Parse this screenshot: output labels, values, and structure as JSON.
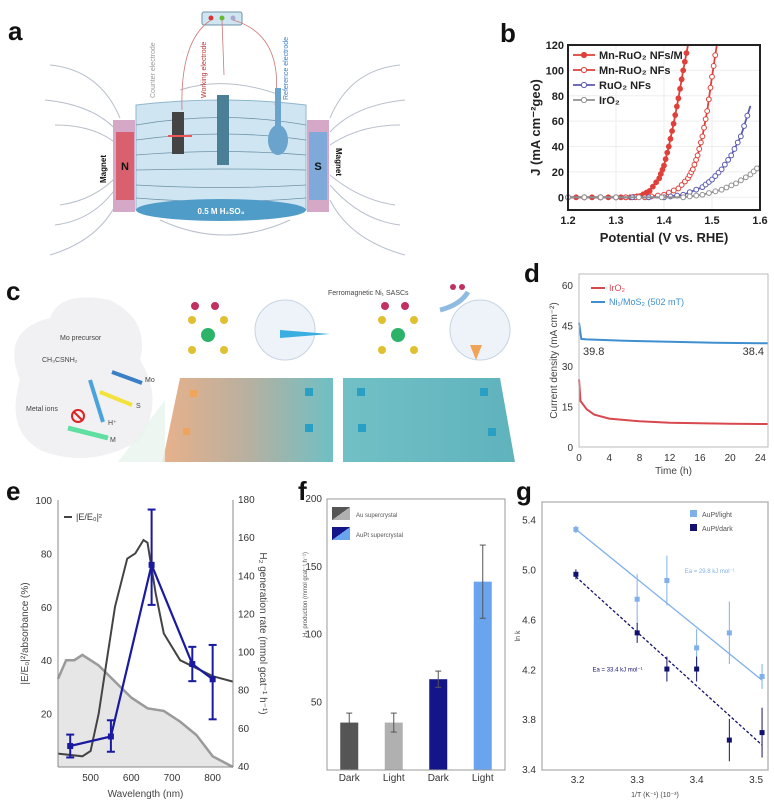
{
  "panels": {
    "a": "a",
    "b": "b",
    "c": "c",
    "d": "d",
    "e": "e",
    "f": "f",
    "g": "g"
  },
  "diagram_a": {
    "magnet_left_pole": "N",
    "magnet_right_pole": "S",
    "magnet_label": "Magnet",
    "counter_electrode": "Counter electrode",
    "working_electrode": "Working electrode",
    "reference_electrode": "Reference electrode",
    "electrolyte": "0.5 M H₂SO₄",
    "colors": {
      "north": "#d9606e",
      "south": "#7ea9d8",
      "cell": "#cfe6f2",
      "electrolyte": "#4f9cc8"
    }
  },
  "diagram_c": {
    "mo_precursor": "Mo precursor",
    "thioacetamide": "CH₃CSNH₂",
    "metal_ions": "Metal ions",
    "mo": "Mo",
    "s": "S",
    "h_plus": "H⁺",
    "m": "M",
    "ferromagnetic_label": "Ferromagnetic Ni₁ SASCs",
    "colors": {
      "orange": "#f0a45a",
      "teal": "#4fb3bf",
      "mo_arrow": "#3a7fc4",
      "s_arrow": "#f2e23a",
      "m_arrow": "#5fe0a0"
    }
  },
  "chart_data": [
    {
      "id": "b",
      "type": "line",
      "xlabel": "Potential (V vs. RHE)",
      "ylabel": "J (mA cm⁻²geo)",
      "xlim": [
        1.2,
        1.6
      ],
      "ylim": [
        -10,
        120
      ],
      "xticks": [
        "1.2",
        "1.3",
        "1.4",
        "1.5",
        "1.6"
      ],
      "yticks": [
        "0",
        "20",
        "40",
        "60",
        "80",
        "100",
        "120"
      ],
      "grid": true,
      "legend": "top-left",
      "series": [
        {
          "name": "Mn-RuO₂ NFs/M",
          "color": "#e0403a",
          "marker": "filled-circle",
          "x": [
            1.2,
            1.25,
            1.3,
            1.33,
            1.35,
            1.37,
            1.39,
            1.4,
            1.41,
            1.42,
            1.43,
            1.44,
            1.45
          ],
          "y": [
            0,
            0,
            0,
            0,
            1,
            5,
            15,
            25,
            40,
            58,
            78,
            100,
            120
          ]
        },
        {
          "name": "Mn-RuO₂ NFs",
          "color": "#e0403a",
          "marker": "open-circle",
          "x": [
            1.2,
            1.3,
            1.36,
            1.4,
            1.43,
            1.45,
            1.46,
            1.47,
            1.48,
            1.49,
            1.5,
            1.51
          ],
          "y": [
            0,
            0,
            0,
            2,
            7,
            15,
            22,
            33,
            48,
            68,
            95,
            120
          ]
        },
        {
          "name": "RuO₂ NFs",
          "color": "#5a5ab0",
          "marker": "open-circle",
          "x": [
            1.2,
            1.3,
            1.4,
            1.44,
            1.48,
            1.5,
            1.52,
            1.54,
            1.56,
            1.58
          ],
          "y": [
            0,
            0,
            0,
            2,
            8,
            14,
            22,
            33,
            48,
            72
          ]
        },
        {
          "name": "IrO₂",
          "color": "#909090",
          "marker": "open-circle",
          "x": [
            1.2,
            1.3,
            1.44,
            1.48,
            1.52,
            1.55,
            1.58,
            1.6
          ],
          "y": [
            0,
            0,
            0,
            2,
            6,
            11,
            18,
            25
          ]
        }
      ]
    },
    {
      "id": "d",
      "type": "line",
      "xlabel": "Time (h)",
      "ylabel": "Current density (mA cm⁻²)",
      "xlim": [
        0,
        25
      ],
      "ylim": [
        0,
        64
      ],
      "xticks": [
        "0",
        "4",
        "8",
        "12",
        "16",
        "20",
        "24"
      ],
      "yticks": [
        "0",
        "15",
        "30",
        "45",
        "60"
      ],
      "legend": "top-left",
      "annotations": [
        "39.8",
        "38.4"
      ],
      "series": [
        {
          "name": "IrO₂",
          "color": "#d9484f",
          "x": [
            0,
            0.2,
            1,
            2,
            4,
            8,
            12,
            16,
            20,
            24,
            25
          ],
          "y": [
            25,
            17,
            14,
            12,
            10.5,
            9.5,
            9,
            8.8,
            8.6,
            8.5,
            8.5
          ]
        },
        {
          "name": "Ni₁/MoS₂ (502 mT)",
          "color": "#3f8fd0",
          "x": [
            0,
            0.3,
            1,
            6,
            12,
            18,
            24,
            25
          ],
          "y": [
            46,
            40,
            39.8,
            39.3,
            38.9,
            38.6,
            38.4,
            38.4
          ]
        }
      ]
    },
    {
      "id": "e",
      "type": "line",
      "xlabel": "Wavelength (nm)",
      "ylabel": "|E/E₀|²/absorbance (%)",
      "ylabel_right": "H₂ generation rate (mmol gcat⁻¹ h⁻¹)",
      "xlim": [
        420,
        850
      ],
      "ylim": [
        0,
        100
      ],
      "ylim_right": [
        40,
        180
      ],
      "xticks": [
        "500",
        "600",
        "700",
        "800"
      ],
      "yticks": [
        "20",
        "40",
        "60",
        "80",
        "100"
      ],
      "yticks_right": [
        "40",
        "60",
        "80",
        "100",
        "120",
        "140",
        "160",
        "180"
      ],
      "legend": "top-left",
      "series": [
        {
          "name": "|E/E₀|²",
          "color": "#444444",
          "x": [
            420,
            480,
            500,
            520,
            540,
            560,
            590,
            610,
            630,
            640,
            660,
            680,
            720,
            760,
            800,
            850
          ],
          "y": [
            5,
            4,
            6,
            20,
            40,
            60,
            78,
            80,
            85,
            84,
            65,
            50,
            40,
            37,
            34,
            32
          ]
        },
        {
          "color": "#9a9a9a",
          "fill": "#e6e6e6",
          "x": [
            420,
            440,
            460,
            480,
            520,
            560,
            600,
            640,
            680,
            720,
            760,
            800,
            850
          ],
          "y": [
            33,
            40,
            40,
            42,
            38,
            32,
            26,
            22,
            21,
            17,
            12,
            4,
            0
          ]
        },
        {
          "color": "#1a1aa0",
          "axis": "right",
          "x": [
            450,
            550,
            650,
            750,
            800
          ],
          "y": [
            51,
            56,
            146,
            94,
            86
          ],
          "err_low": [
            45,
            48,
            125,
            85,
            65
          ],
          "err_high": [
            57,
            64.5,
            175,
            103,
            104
          ]
        }
      ]
    },
    {
      "id": "f",
      "type": "bar",
      "ylabel": "H₂ production (mmol gcat⁻¹ h⁻¹)",
      "ylim": [
        0,
        200
      ],
      "yticks": [
        "50",
        "100",
        "150",
        "200"
      ],
      "categories": [
        "Dark",
        "Light",
        "Dark",
        "Light"
      ],
      "values": [
        35,
        35,
        67,
        139
      ],
      "errors": [
        7,
        7,
        6,
        27
      ],
      "colors": [
        "#555555",
        "#b0b0b0",
        "#15158a",
        "#6aa4ee"
      ],
      "legend": "top-left",
      "legend_entries": [
        "Au supercrystal",
        "AuPt supercrystal"
      ]
    },
    {
      "id": "g",
      "type": "scatter",
      "xlabel": "1/T (K⁻¹) (10⁻³)",
      "ylabel": "ln k",
      "xlim": [
        3.14,
        3.52
      ],
      "ylim": [
        3.4,
        5.55
      ],
      "xticks": [
        "3.2",
        "3.3",
        "3.4",
        "3.5"
      ],
      "yticks": [
        "3.4",
        "3.8",
        "4.2",
        "4.6",
        "5.0",
        "5.4"
      ],
      "legend": "top-right",
      "series": [
        {
          "name": "AuPt/light",
          "color": "#7fb0ea",
          "x": [
            3.197,
            3.3,
            3.35,
            3.4,
            3.455,
            3.51
          ],
          "y": [
            5.33,
            4.77,
            4.92,
            4.38,
            4.5,
            4.15
          ],
          "err": [
            0.03,
            0.2,
            0.2,
            0.15,
            0.25,
            0.1
          ],
          "fit": [
            5.33,
            4.12
          ],
          "annotation": "Ea = 29.8 kJ mol⁻¹"
        },
        {
          "name": "AuPt/dark",
          "color": "#12126e",
          "x": [
            3.197,
            3.3,
            3.35,
            3.4,
            3.455,
            3.51
          ],
          "y": [
            4.97,
            4.5,
            4.21,
            4.21,
            3.64,
            3.7
          ],
          "err": [
            0.04,
            0.08,
            0.1,
            0.1,
            0.17,
            0.2
          ],
          "fit": [
            4.95,
            3.6
          ],
          "annotation": "Ea = 33.4 kJ mol⁻¹"
        }
      ]
    }
  ]
}
